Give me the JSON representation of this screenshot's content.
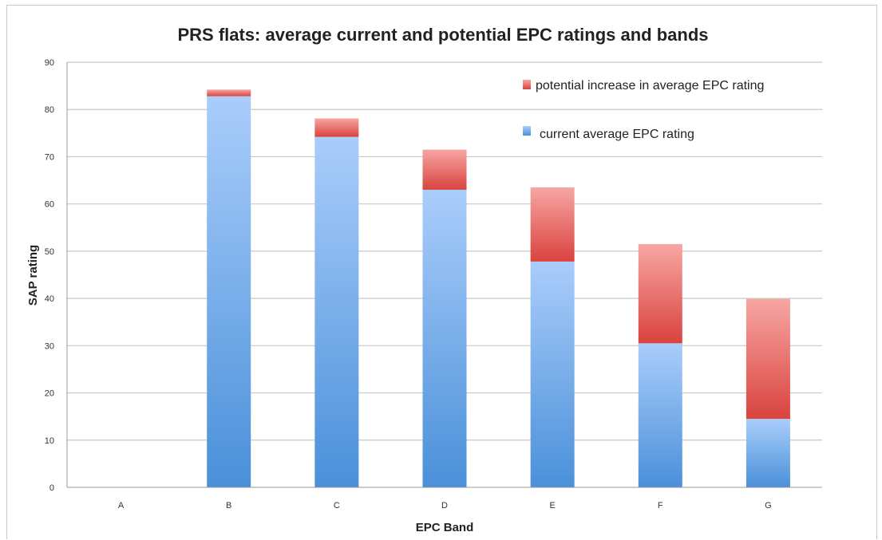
{
  "chart_data": {
    "type": "bar",
    "stacked": true,
    "title": "PRS flats: average current and potential EPC ratings and bands",
    "xlabel": "EPC Band",
    "ylabel": "SAP rating",
    "categories": [
      "A",
      "B",
      "C",
      "D",
      "E",
      "F",
      "G"
    ],
    "ylim": [
      0,
      90
    ],
    "yticks": [
      0,
      10,
      20,
      30,
      40,
      50,
      60,
      70,
      80,
      90
    ],
    "grid": true,
    "legend_position": "top-right",
    "series": [
      {
        "name": "current average EPC rating",
        "color": "#5b9be0",
        "values": [
          0,
          82.8,
          74.2,
          63,
          47.8,
          30.5,
          14.5
        ]
      },
      {
        "name": "potential increase in average EPC rating",
        "color": "#e05a55",
        "values": [
          0,
          1.4,
          3.9,
          8.5,
          15.7,
          21,
          25.4
        ]
      }
    ]
  }
}
